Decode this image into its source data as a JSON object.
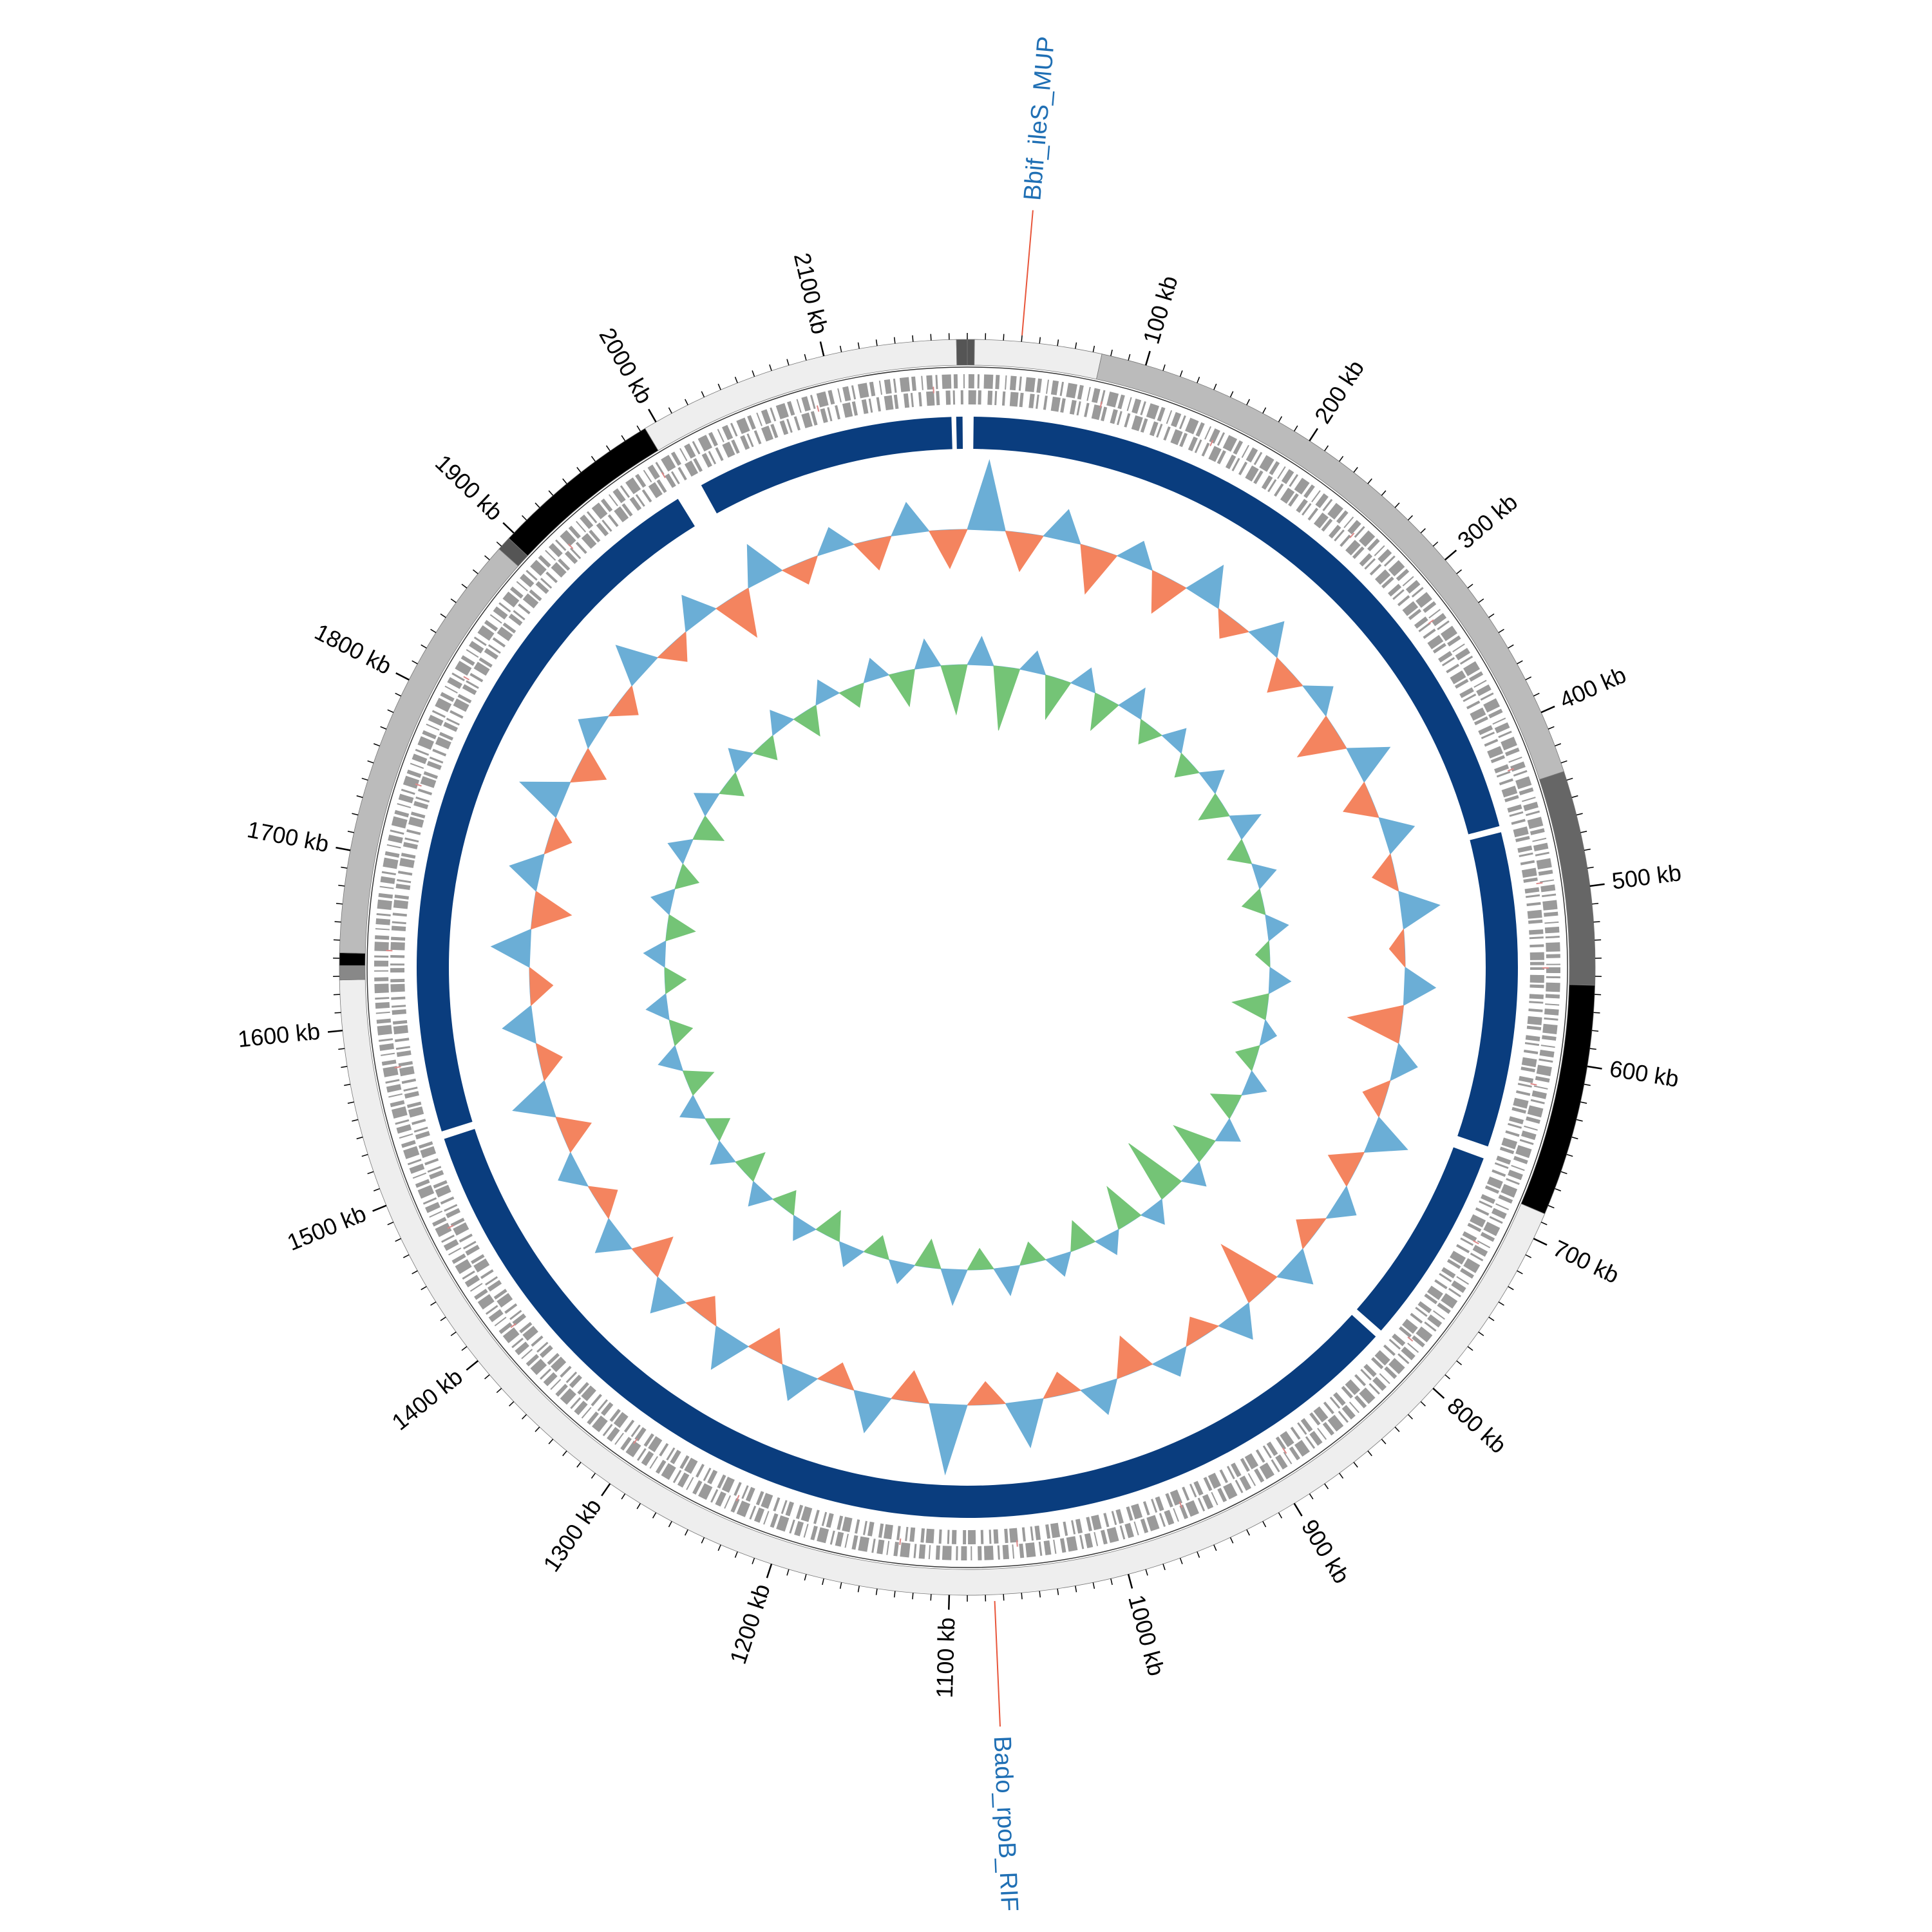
{
  "chart_data": {
    "type": "circular-genome",
    "xlim": [
      0,
      2180
    ],
    "xticks": [
      {
        "value": 100,
        "label": "100 kb"
      },
      {
        "value": 200,
        "label": "200 kb"
      },
      {
        "value": 300,
        "label": "300 kb"
      },
      {
        "value": 400,
        "label": "400 kb"
      },
      {
        "value": 500,
        "label": "500 kb"
      },
      {
        "value": 600,
        "label": "600 kb"
      },
      {
        "value": 700,
        "label": "700 kb"
      },
      {
        "value": 800,
        "label": "800 kb"
      },
      {
        "value": 900,
        "label": "900 kb"
      },
      {
        "value": 1000,
        "label": "1000 kb"
      },
      {
        "value": 1100,
        "label": "1100 kb"
      },
      {
        "value": 1200,
        "label": "1200 kb"
      },
      {
        "value": 1300,
        "label": "1300 kb"
      },
      {
        "value": 1400,
        "label": "1400 kb"
      },
      {
        "value": 1500,
        "label": "1500 kb"
      },
      {
        "value": 1600,
        "label": "1600 kb"
      },
      {
        "value": 1700,
        "label": "1700 kb"
      },
      {
        "value": 1800,
        "label": "1800 kb"
      },
      {
        "value": 1900,
        "label": "1900 kb"
      },
      {
        "value": 2000,
        "label": "2000 kb"
      },
      {
        "value": 2100,
        "label": "2100 kb"
      }
    ],
    "minor_tick_step": 10,
    "contigs": [
      {
        "start": 0,
        "end": 4,
        "color": "#555555"
      },
      {
        "start": 4,
        "end": 75,
        "color": "#eeeeee"
      },
      {
        "start": 75,
        "end": 435,
        "color": "#bbbbbb"
      },
      {
        "start": 435,
        "end": 555,
        "color": "#666666"
      },
      {
        "start": 555,
        "end": 685,
        "color": "#000000"
      },
      {
        "start": 685,
        "end": 1628,
        "color": "#eeeeee"
      },
      {
        "start": 1628,
        "end": 1636,
        "color": "#888888"
      },
      {
        "start": 1636,
        "end": 1643,
        "color": "#000000"
      },
      {
        "start": 1643,
        "end": 1888,
        "color": "#bbbbbb"
      },
      {
        "start": 1888,
        "end": 1896,
        "color": "#555555"
      },
      {
        "start": 1896,
        "end": 1993,
        "color": "#000000"
      },
      {
        "start": 1993,
        "end": 2174,
        "color": "#eeeeee"
      },
      {
        "start": 2174,
        "end": 2180,
        "color": "#555555"
      }
    ],
    "alignment": {
      "color": "#0a3d7e",
      "segments": [
        {
          "start": 4,
          "end": 455
        },
        {
          "start": 459,
          "end": 660
        },
        {
          "start": 668,
          "end": 795
        },
        {
          "start": 800,
          "end": 1525
        },
        {
          "start": 1530,
          "end": 1988
        },
        {
          "start": 2005,
          "end": 2170
        },
        {
          "start": 2173,
          "end": 2177
        }
      ]
    },
    "tracks": [
      {
        "color_up": "#6baed6",
        "color_down": "#f4845f",
        "values": [
          0.9,
          -0.5,
          0.4,
          -0.6,
          0.3,
          -0.5,
          0.5,
          -0.3,
          0.4,
          -0.4,
          0.3,
          -0.6,
          0.5,
          -0.4,
          0.4,
          -0.3,
          0.5,
          -0.2,
          0.4,
          -0.7,
          0.3,
          -0.3,
          0.5,
          -0.4,
          0.3,
          -0.3,
          0.4,
          -0.8,
          0.4,
          -0.3,
          0.3,
          -0.5,
          0.4,
          -0.3,
          0.6,
          -0.3,
          0.9,
          -0.4,
          0.5,
          -0.3,
          0.4,
          -0.4,
          0.5,
          -0.3,
          0.4,
          -0.5,
          0.4,
          -0.3,
          0.3,
          -0.4,
          0.5,
          -0.3,
          0.4,
          -0.3,
          0.5,
          -0.5,
          0.4,
          -0.3,
          0.6,
          -0.4,
          0.3,
          -0.3,
          0.5,
          -0.3,
          0.4,
          -0.6,
          0.5,
          -0.3,
          0.3,
          -0.4,
          0.4,
          -0.5
        ]
      },
      {
        "color_up": "#6baed6",
        "color_down": "#74c476",
        "values": [
          0.4,
          -0.9,
          0.3,
          -0.6,
          0.3,
          -0.5,
          0.4,
          -0.3,
          0.3,
          -0.3,
          0.3,
          -0.4,
          0.4,
          -0.3,
          0.3,
          -0.3,
          0.3,
          -0.2,
          0.3,
          -0.5,
          0.2,
          -0.3,
          0.3,
          -0.4,
          0.3,
          -0.6,
          0.3,
          -0.9,
          0.3,
          -0.6,
          0.3,
          -0.4,
          0.3,
          -0.3,
          0.4,
          -0.3,
          0.5,
          -0.4,
          0.3,
          -0.3,
          0.3,
          -0.4,
          0.3,
          -0.3,
          0.3,
          -0.4,
          0.3,
          -0.3,
          0.3,
          -0.4,
          0.3,
          -0.3,
          0.3,
          -0.3,
          0.3,
          -0.4,
          0.3,
          -0.3,
          0.3,
          -0.4,
          0.3,
          -0.3,
          0.3,
          -0.3,
          0.3,
          -0.4,
          0.3,
          -0.3,
          0.3,
          -0.5,
          0.4,
          -0.7
        ]
      }
    ],
    "annotations": [
      {
        "label": "Bbif_ileS_MUP",
        "position": 30,
        "color": "#1f6fb4",
        "line_color": "#e8553a"
      },
      {
        "label": "Bado_rpoB_RIF",
        "position": 1075,
        "color": "#1f6fb4",
        "line_color": "#e8553a"
      }
    ]
  }
}
